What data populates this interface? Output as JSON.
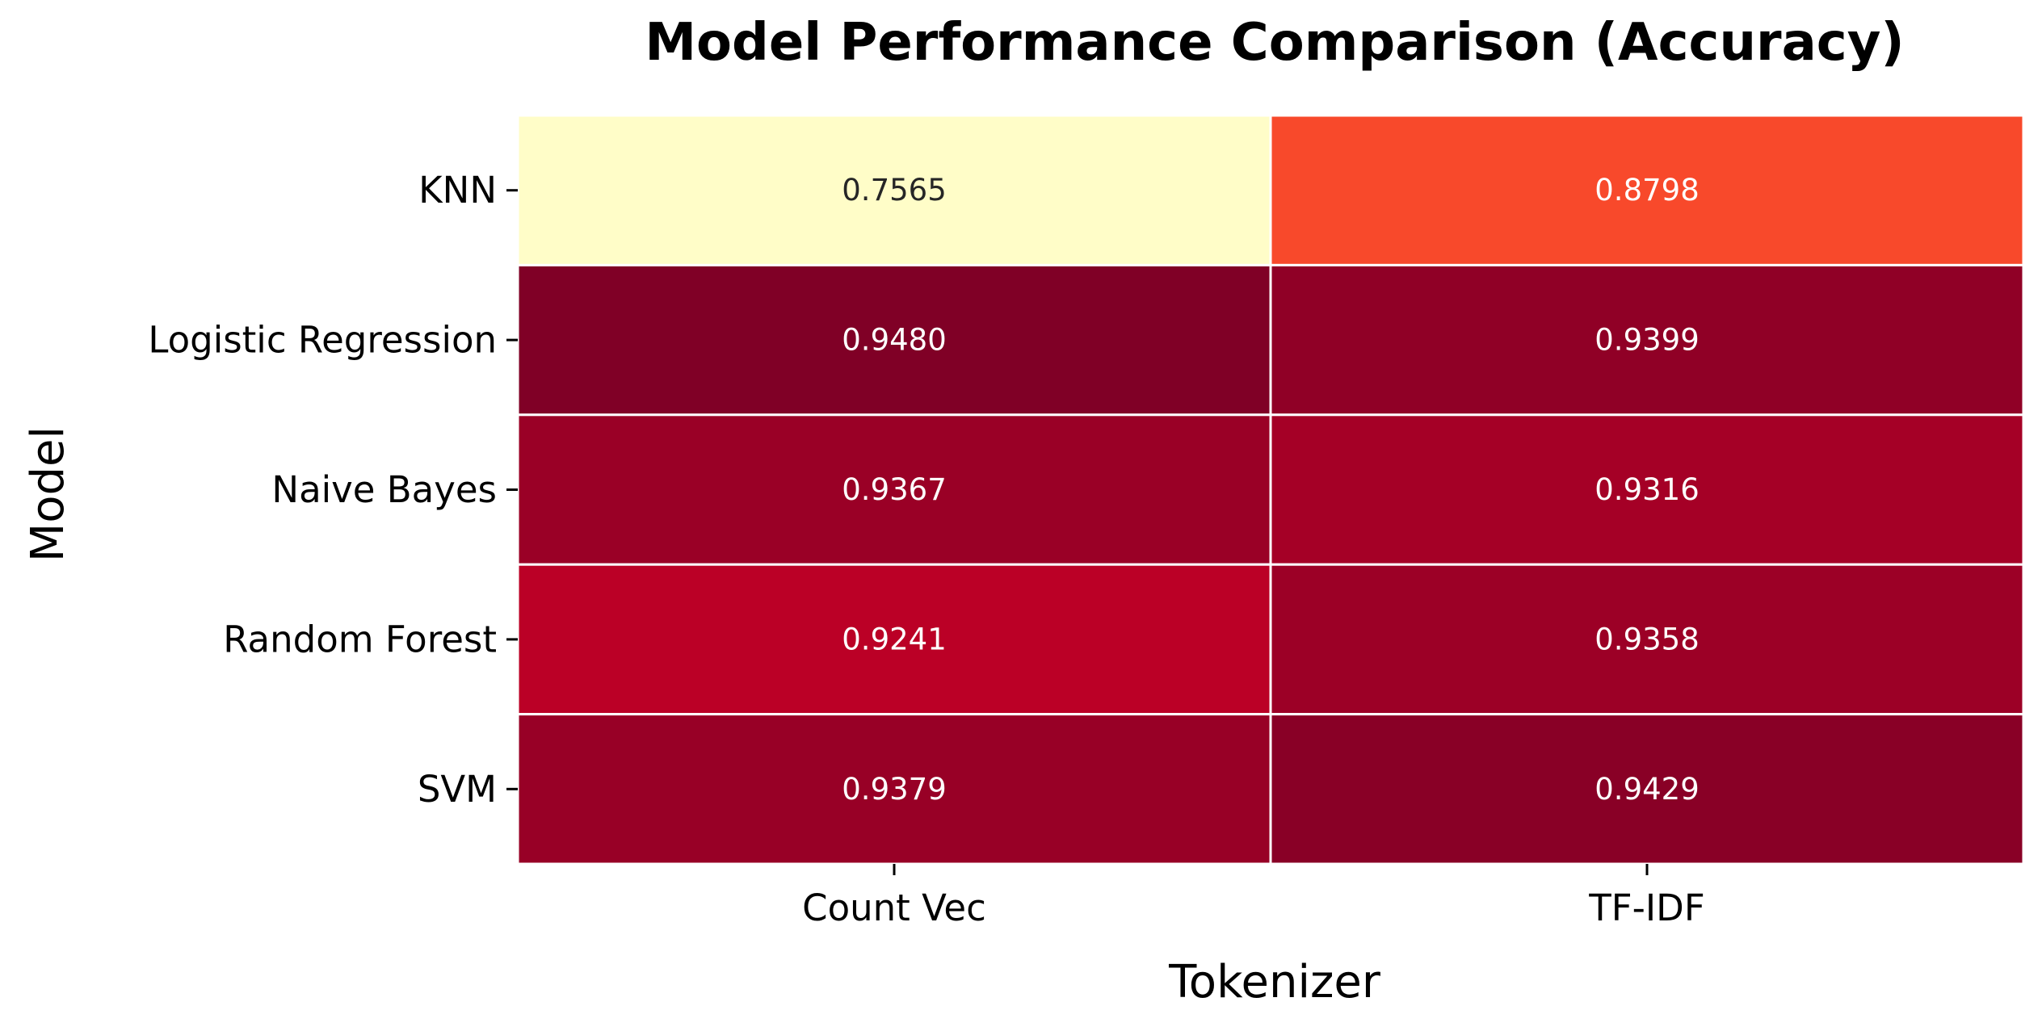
{
  "chart_data": {
    "type": "heatmap",
    "title": "Model Performance Comparison (Accuracy)",
    "xlabel": "Tokenizer",
    "ylabel": "Model",
    "x_categories": [
      "Count Vec",
      "TF-IDF"
    ],
    "y_categories": [
      "KNN",
      "Logistic Regression",
      "Naive Bayes",
      "Random Forest",
      "SVM"
    ],
    "values": [
      [
        0.7565,
        0.8798
      ],
      [
        0.948,
        0.9399
      ],
      [
        0.9367,
        0.9316
      ],
      [
        0.9241,
        0.9358
      ],
      [
        0.9379,
        0.9429
      ]
    ],
    "value_labels": [
      [
        "0.7565",
        "0.8798"
      ],
      [
        "0.9480",
        "0.9399"
      ],
      [
        "0.9367",
        "0.9316"
      ],
      [
        "0.9241",
        "0.9358"
      ],
      [
        "0.9379",
        "0.9429"
      ]
    ],
    "colormap": "YlOrRd",
    "colorbar": false,
    "cell_colors": [
      [
        "#fffdc8",
        "#f8492b"
      ],
      [
        "#800026",
        "#900026"
      ],
      [
        "#9a0026",
        "#a50026"
      ],
      [
        "#bb0026",
        "#9c0026"
      ],
      [
        "#980026",
        "#890026"
      ]
    ],
    "annotation_colors": {
      "light_cell": "#262626",
      "dark_cell": "#ffffff"
    }
  }
}
